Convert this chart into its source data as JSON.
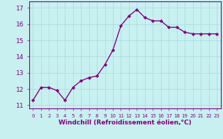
{
  "x": [
    0,
    1,
    2,
    3,
    4,
    5,
    6,
    7,
    8,
    9,
    10,
    11,
    12,
    13,
    14,
    15,
    16,
    17,
    18,
    19,
    20,
    21,
    22,
    23
  ],
  "y": [
    11.3,
    12.1,
    12.1,
    11.9,
    11.3,
    12.1,
    12.5,
    12.7,
    12.8,
    13.5,
    14.4,
    15.9,
    16.5,
    16.9,
    16.4,
    16.2,
    16.2,
    15.8,
    15.8,
    15.5,
    15.4,
    15.4,
    15.4,
    15.4
  ],
  "line_color": "#800080",
  "marker": "D",
  "marker_size": 2.2,
  "line_width": 1.0,
  "xlabel": "Windchill (Refroidissement éolien,°C)",
  "xlabel_fontsize": 6.5,
  "ylabel_ticks": [
    11,
    12,
    13,
    14,
    15,
    16,
    17
  ],
  "xtick_labels": [
    "0",
    "1",
    "2",
    "3",
    "4",
    "5",
    "6",
    "7",
    "8",
    "9",
    "10",
    "11",
    "12",
    "13",
    "14",
    "15",
    "16",
    "17",
    "18",
    "19",
    "20",
    "21",
    "22",
    "23"
  ],
  "ylim": [
    10.8,
    17.4
  ],
  "xlim": [
    -0.5,
    23.5
  ],
  "bg_color": "#c8f0f0",
  "grid_color": "#aadddd",
  "tick_color": "#800080",
  "label_color": "#800080",
  "ytick_fontsize": 6.5,
  "xtick_fontsize": 5.0
}
